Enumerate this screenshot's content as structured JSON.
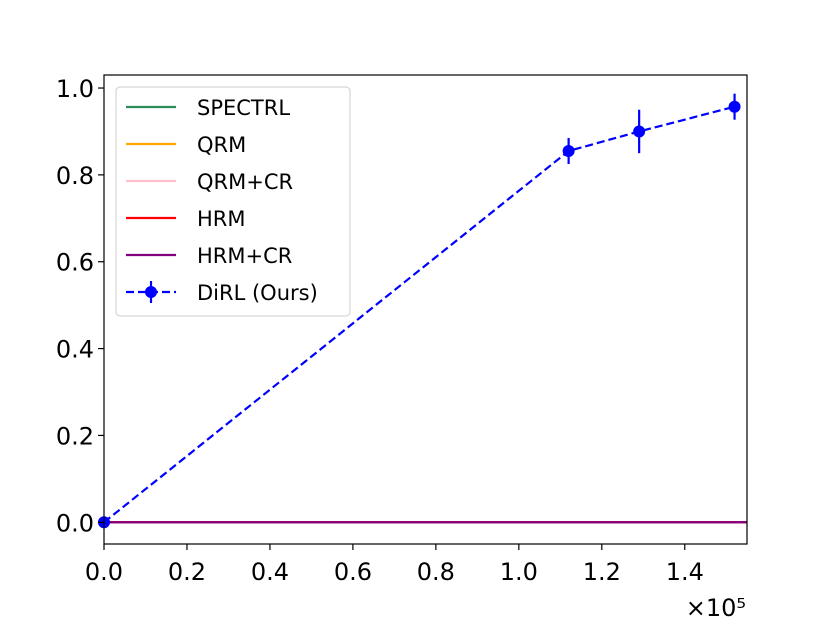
{
  "chart_data": {
    "type": "line",
    "title": "",
    "xlabel": "",
    "ylabel": "",
    "x_offset_label": "×10⁵",
    "xlim": [
      0.0,
      1.55
    ],
    "ylim": [
      -0.05,
      1.03
    ],
    "x_ticks": [
      "0.0",
      "0.2",
      "0.4",
      "0.6",
      "0.8",
      "1.0",
      "1.2",
      "1.4"
    ],
    "y_ticks": [
      "0.0",
      "0.2",
      "0.4",
      "0.6",
      "0.8",
      "1.0"
    ],
    "grid": false,
    "legend_position": "upper-left",
    "series": [
      {
        "name": "SPECTRL",
        "color": "#2e8b57",
        "style": "solid",
        "x": [
          0.0,
          1.55
        ],
        "y": [
          0.0,
          0.0
        ]
      },
      {
        "name": "QRM",
        "color": "#ffa500",
        "style": "solid",
        "x": [
          0.0,
          1.55
        ],
        "y": [
          0.0,
          0.0
        ]
      },
      {
        "name": "QRM+CR",
        "color": "#ffc0cb",
        "style": "solid",
        "x": [
          0.0,
          1.55
        ],
        "y": [
          0.0,
          0.0
        ]
      },
      {
        "name": "HRM",
        "color": "#ff0000",
        "style": "solid",
        "x": [
          0.0,
          1.55
        ],
        "y": [
          0.0,
          0.0
        ]
      },
      {
        "name": "HRM+CR",
        "color": "#800080",
        "style": "solid",
        "x": [
          0.0,
          1.55
        ],
        "y": [
          0.0,
          0.0
        ]
      },
      {
        "name": "DiRL (Ours)",
        "color": "#0000ff",
        "style": "dashed",
        "marker": "circle",
        "x": [
          0.0,
          1.12,
          1.29,
          1.52
        ],
        "y": [
          0.0,
          0.855,
          0.9,
          0.957
        ],
        "error": [
          0.0,
          0.03,
          0.05,
          0.03
        ]
      }
    ]
  }
}
